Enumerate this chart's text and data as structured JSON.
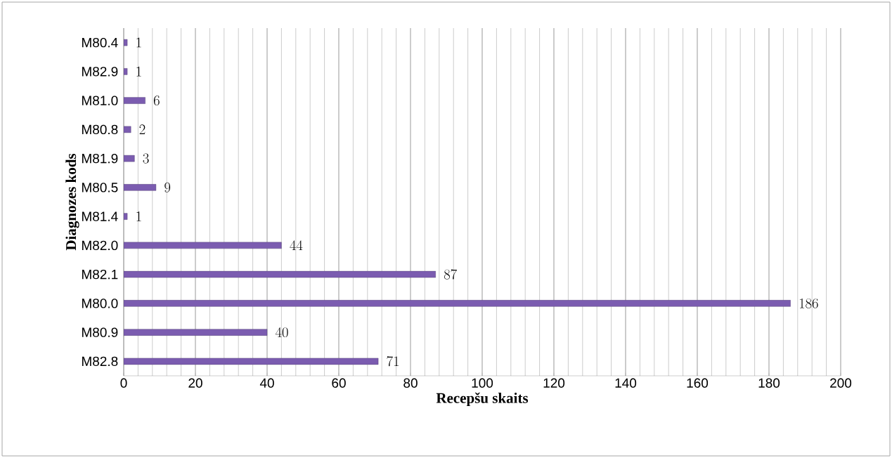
{
  "chart_data": {
    "type": "bar",
    "orientation": "horizontal",
    "xlabel": "Recepšu skaits",
    "ylabel": "Diagnozes kods",
    "categories": [
      "M80.4",
      "M82.9",
      "M81.0",
      "M80.8",
      "M81.9",
      "M80.5",
      "M81.4",
      "M82.0",
      "M82.1",
      "M80.0",
      "M80.9",
      "M82.8"
    ],
    "values": [
      1,
      1,
      6,
      2,
      3,
      9,
      1,
      44,
      87,
      186,
      40,
      71
    ],
    "color": "#7b5cb0",
    "xlim": [
      0,
      200
    ],
    "xticks": [
      0,
      20,
      40,
      60,
      80,
      100,
      120,
      140,
      160,
      180,
      200
    ],
    "grid": "x",
    "data_labels": true
  }
}
